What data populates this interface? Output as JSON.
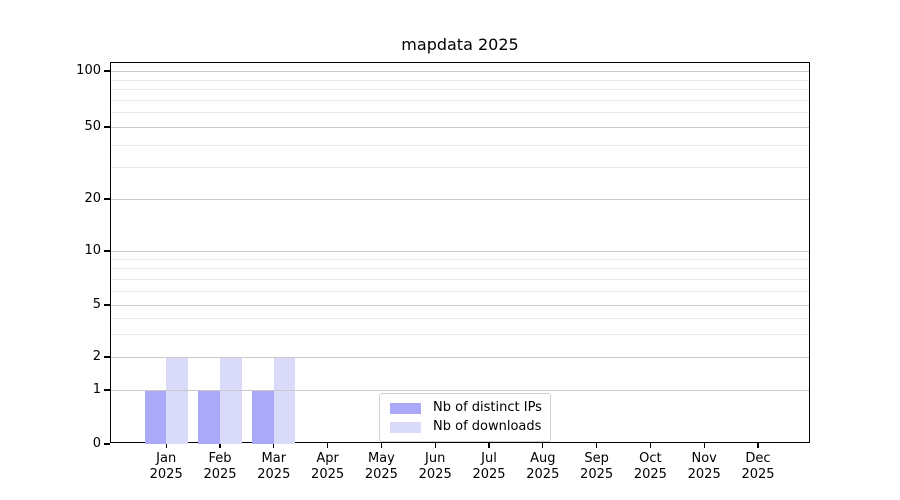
{
  "chart_data": {
    "type": "bar",
    "title": "mapdata 2025",
    "categories": [
      "Jan 2025",
      "Feb 2025",
      "Mar 2025",
      "Apr 2025",
      "May 2025",
      "Jun 2025",
      "Jul 2025",
      "Aug 2025",
      "Sep 2025",
      "Oct 2025",
      "Nov 2025",
      "Dec 2025"
    ],
    "series": [
      {
        "name": "Nb of distinct IPs",
        "color": "#a9a9f7",
        "values": [
          1,
          1,
          1,
          0,
          0,
          0,
          0,
          0,
          0,
          0,
          0,
          0
        ]
      },
      {
        "name": "Nb of downloads",
        "color": "#dadaf9",
        "values": [
          2,
          2,
          2,
          0,
          0,
          0,
          0,
          0,
          0,
          0,
          0,
          0
        ]
      }
    ],
    "y_axis": {
      "scale": "log-like with zero baseline",
      "major_ticks": [
        {
          "value": 0,
          "label": "0"
        },
        {
          "value": 1,
          "label": "1"
        },
        {
          "value": 2,
          "label": "2"
        },
        {
          "value": 5,
          "label": "5"
        },
        {
          "value": 10,
          "label": "10"
        },
        {
          "value": 20,
          "label": "20"
        },
        {
          "value": 50,
          "label": "50"
        },
        {
          "value": 100,
          "label": "100"
        }
      ],
      "minor_ticks": [
        3,
        4,
        6,
        7,
        8,
        9,
        30,
        40,
        60,
        70,
        80,
        90
      ],
      "ylim": [
        0,
        110
      ]
    },
    "grid": {
      "horizontal": true,
      "vertical": false
    },
    "legend": {
      "position": "lower center"
    }
  },
  "colors": {
    "major_grid": "#c9c9c9",
    "minor_grid": "#e9e9e9",
    "axis": "#000000",
    "text": "#000000",
    "legend_border": "#cfcfcf",
    "background": "#ffffff"
  }
}
